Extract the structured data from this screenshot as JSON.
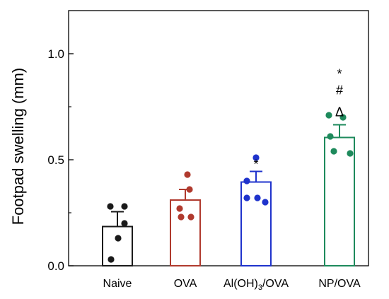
{
  "chart_data": {
    "type": "bar",
    "ylabel": "Footpad swelling (mm)",
    "ylim": [
      0,
      1.2
    ],
    "yticks": [
      {
        "value": 0,
        "label": "0.0"
      },
      {
        "value": 0.5,
        "label": "0.5"
      },
      {
        "value": 1.0,
        "label": "1.0"
      }
    ],
    "categories": [
      "Naive",
      "OVA",
      "Al(OH)3/OVA",
      "NP/OVA"
    ],
    "category_parts": [
      {
        "base": "Naive",
        "sub": "",
        "rest": ""
      },
      {
        "base": "OVA",
        "sub": "",
        "rest": ""
      },
      {
        "base": "Al(OH)",
        "sub": "3",
        "rest": "/OVA"
      },
      {
        "base": "NP/OVA",
        "sub": "",
        "rest": ""
      }
    ],
    "values": [
      0.185,
      0.31,
      0.395,
      0.605
    ],
    "errors": [
      0.07,
      0.05,
      0.05,
      0.06
    ],
    "points": [
      [
        0.28,
        0.28,
        0.2,
        0.13,
        0.03
      ],
      [
        0.43,
        0.36,
        0.27,
        0.23,
        0.23
      ],
      [
        0.51,
        0.4,
        0.32,
        0.32,
        0.3
      ],
      [
        0.71,
        0.7,
        0.61,
        0.54,
        0.53
      ]
    ],
    "colors": [
      "#1a1a1a",
      "#b03a2e",
      "#1f33cc",
      "#1e8a5c"
    ],
    "annotations": [
      [],
      [],
      [
        "*"
      ],
      [
        "*",
        "#",
        "Δ"
      ]
    ]
  }
}
